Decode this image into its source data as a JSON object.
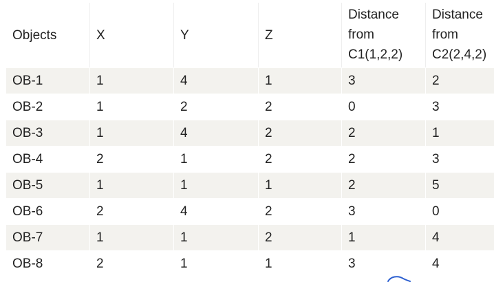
{
  "table": {
    "headers": [
      "Objects",
      "X",
      "Y",
      "Z",
      "Distance from C1(1,2,2)",
      "Distance from C2(2,4,2)"
    ],
    "header_lines": {
      "d1": [
        "Distance",
        "from",
        "C1(1,2,2)"
      ],
      "d2": [
        "Distance",
        "from",
        "C2(2,4,2)"
      ]
    },
    "rows": [
      [
        "OB-1",
        "1",
        "4",
        "1",
        "3",
        "2"
      ],
      [
        "OB-2",
        "1",
        "2",
        "2",
        "0",
        "3"
      ],
      [
        "OB-3",
        "1",
        "4",
        "2",
        "2",
        "1"
      ],
      [
        "OB-4",
        "2",
        "1",
        "2",
        "2",
        "3"
      ],
      [
        "OB-5",
        "1",
        "1",
        "1",
        "2",
        "5"
      ],
      [
        "OB-6",
        "2",
        "4",
        "2",
        "3",
        "0"
      ],
      [
        "OB-7",
        "1",
        "1",
        "2",
        "1",
        "4"
      ],
      [
        "OB-8",
        "2",
        "1",
        "1",
        "3",
        "4"
      ]
    ]
  },
  "colors": {
    "stripe": "#f3f2ee",
    "text": "#222222",
    "pen_mark": "#2c5fd0"
  }
}
